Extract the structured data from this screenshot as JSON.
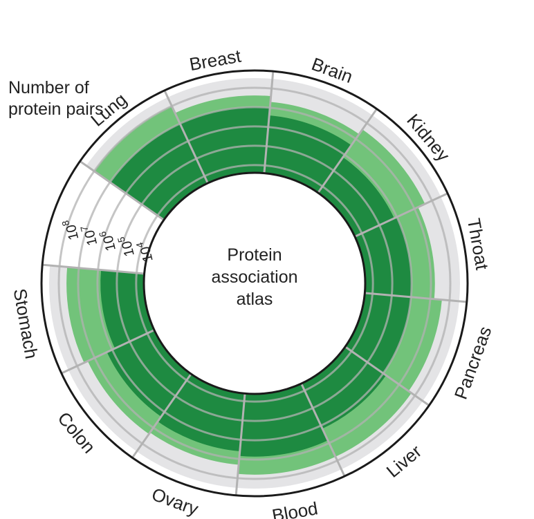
{
  "chart_data": {
    "type": "radial-bar",
    "title": "",
    "axis_title": "Number of protein pairs",
    "center_text": [
      "Protein",
      "association",
      "atlas"
    ],
    "scale": "log",
    "ticks": [
      {
        "base": "10",
        "exp": "4",
        "value": 10000
      },
      {
        "base": "10",
        "exp": "5",
        "value": 100000
      },
      {
        "base": "10",
        "exp": "6",
        "value": 1000000
      },
      {
        "base": "10",
        "exp": "7",
        "value": 10000000
      },
      {
        "base": "10",
        "exp": "8",
        "value": 100000000
      }
    ],
    "categories": [
      "Lung",
      "Breast",
      "Brain",
      "Kidney",
      "Throat",
      "Pancreas",
      "Liver",
      "Blood",
      "Ovary",
      "Colon",
      "Stomach"
    ],
    "series": [
      {
        "values": [
          10000000,
          10000000,
          4000000,
          700000,
          1000000,
          1000000,
          1500000,
          7000000,
          4000000,
          2000000,
          700000
        ]
      },
      {
        "values": [
          100000000,
          40000000,
          20000000,
          40000000,
          16000000,
          40000000,
          60000000,
          60000000,
          20000000,
          25000000,
          40000000
        ]
      }
    ],
    "colors": {
      "dark_green": "#1e8a41",
      "light_green": "#72c37a",
      "track_gray": "#e4e4e6",
      "divider_gray": "#b2b2b2",
      "ring_black": "#1a1a1a"
    }
  }
}
